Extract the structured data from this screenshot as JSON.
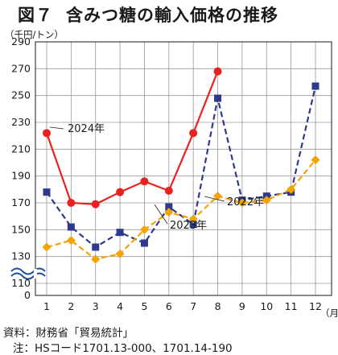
{
  "title_fig": "図７",
  "title_text": "含みつ糖の輸入価格の推移",
  "y_unit": "（千円/トン）",
  "x_unit": "（月）",
  "source_note": "資料：財務省「貿易統計」",
  "hs_note": "注：HSコード1701.13-000、1701.14-190",
  "chart_data": {
    "type": "line",
    "title": "含みつ糖の輸入価格の推移",
    "xlabel": "（月）",
    "ylabel": "（千円/トン）",
    "categories": [
      "1",
      "2",
      "3",
      "4",
      "5",
      "6",
      "7",
      "8",
      "9",
      "10",
      "11",
      "12"
    ],
    "y_ticks": [
      0,
      110,
      130,
      150,
      170,
      190,
      210,
      230,
      250,
      270,
      290
    ],
    "ylim": [
      110,
      290
    ],
    "axis_break": true,
    "grid": true,
    "series": [
      {
        "name": "2022年",
        "color": "#2e3a8c",
        "marker": "square",
        "dash": "dashed",
        "values": [
          178,
          152,
          137,
          148,
          140,
          167,
          154,
          248,
          172,
          175,
          178,
          257
        ]
      },
      {
        "name": "2023年",
        "color": "#f5a300",
        "marker": "diamond",
        "dash": "dashed",
        "values": [
          137,
          142,
          128,
          132,
          150,
          163,
          158,
          175,
          170,
          172,
          180,
          202
        ]
      },
      {
        "name": "2024年",
        "color": "#e8231f",
        "marker": "circle",
        "dash": "solid",
        "values": [
          222,
          170,
          169,
          178,
          186,
          179,
          222,
          268,
          null,
          null,
          null,
          null
        ]
      }
    ]
  }
}
